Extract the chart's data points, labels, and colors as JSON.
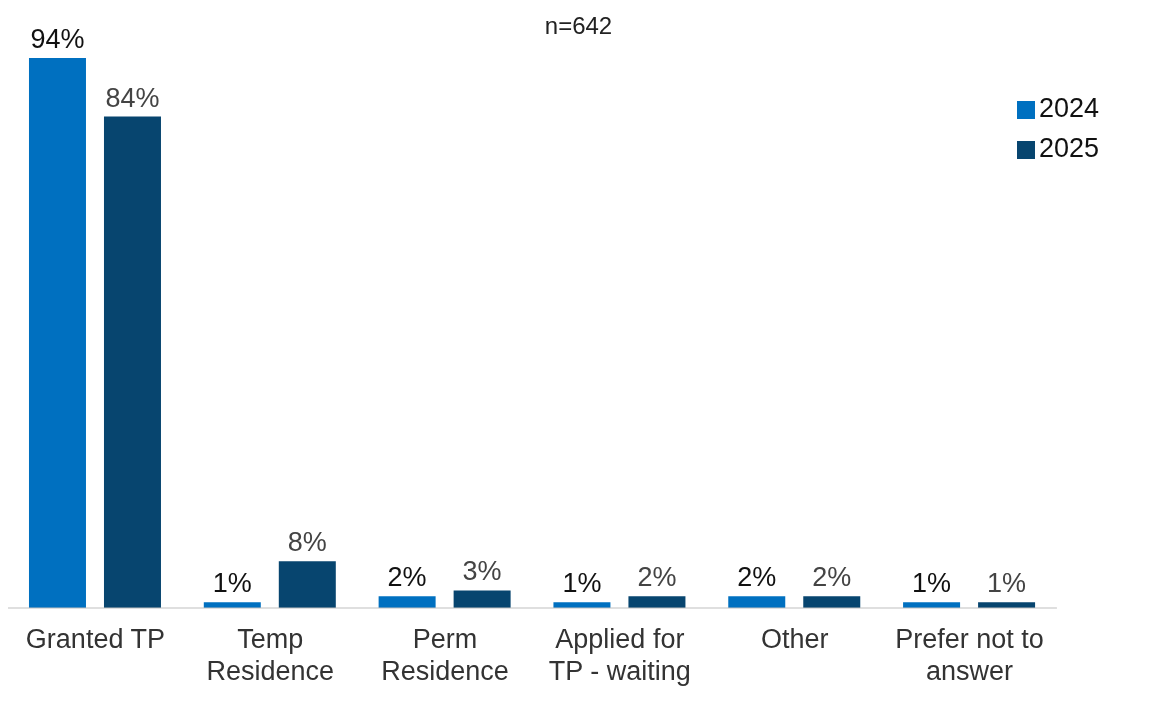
{
  "chart_data": {
    "type": "bar",
    "subtitle": "n=642",
    "categories": [
      "Granted TP",
      "Temp Residence",
      "Perm Residence",
      "Applied for TP - waiting",
      "Other",
      "Prefer not to answer"
    ],
    "series": [
      {
        "name": "2024",
        "color": "#0070c0",
        "values": [
          94,
          1,
          2,
          1,
          2,
          1
        ],
        "value_labels": [
          "94%",
          "1%",
          "2%",
          "1%",
          "2%",
          "1%"
        ]
      },
      {
        "name": "2025",
        "color": "#07456f",
        "values": [
          84,
          8,
          3,
          2,
          2,
          1
        ],
        "value_labels": [
          "84%",
          "8%",
          "3%",
          "2%",
          "2%",
          "1%"
        ]
      }
    ],
    "legend": "top right",
    "grid": false
  }
}
